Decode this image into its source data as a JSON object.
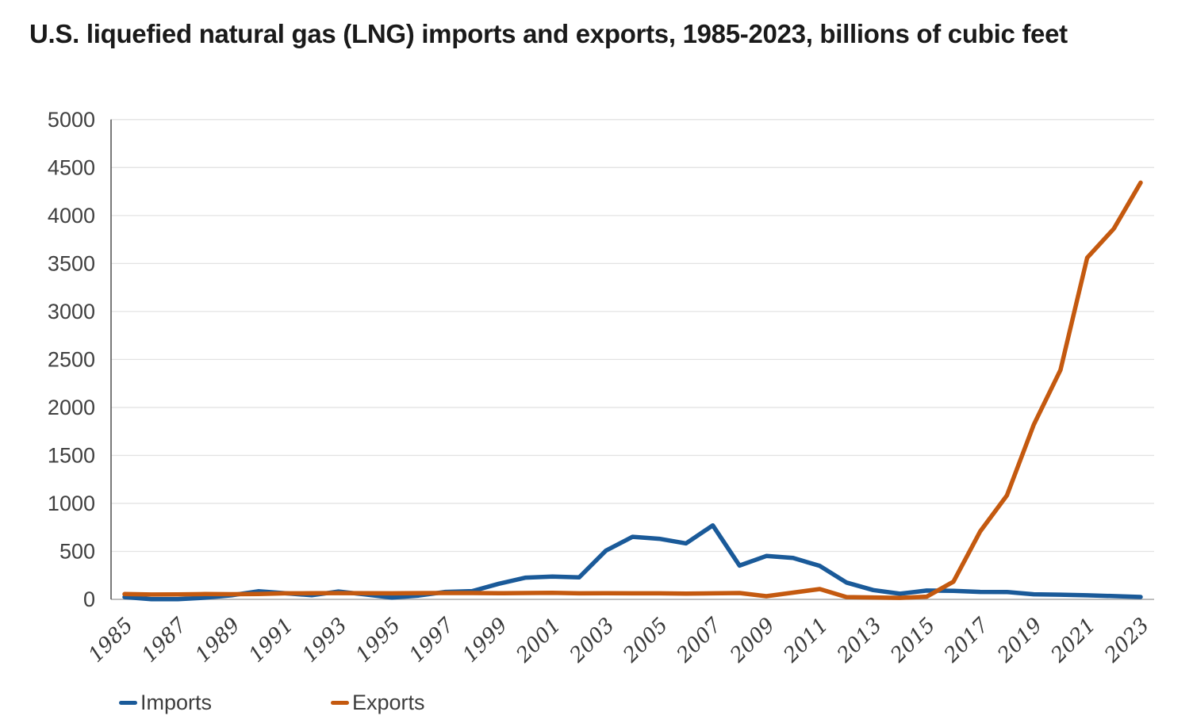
{
  "title": "U.S. liquefied natural gas (LNG) imports and exports, 1985-2023, billions of cubic feet",
  "legend": {
    "imports_label": "Imports",
    "exports_label": "Exports"
  },
  "colors": {
    "imports": "#1a5a99",
    "exports": "#c4590f",
    "grid": "#e3e3e3",
    "axis_left": "#595959",
    "axis_bottom": "#a8a8a8",
    "tick_text": "#404040",
    "title_text": "#1a1a1a"
  },
  "chart_data": {
    "type": "line",
    "title": "U.S. liquefied natural gas (LNG) imports and exports, 1985-2023, billions of cubic feet",
    "xlabel": "",
    "ylabel": "billions of cubic feet",
    "ylim": [
      0,
      5000
    ],
    "ytick_step": 500,
    "grid": "horizontal",
    "legend_position": "bottom-left",
    "xtick_every": 2,
    "x": [
      1985,
      1986,
      1987,
      1988,
      1989,
      1990,
      1991,
      1992,
      1993,
      1994,
      1995,
      1996,
      1997,
      1998,
      1999,
      2000,
      2001,
      2002,
      2003,
      2004,
      2005,
      2006,
      2007,
      2008,
      2009,
      2010,
      2011,
      2012,
      2013,
      2014,
      2015,
      2016,
      2017,
      2018,
      2019,
      2020,
      2021,
      2022,
      2023
    ],
    "series": [
      {
        "name": "Imports",
        "values": [
          24,
          2,
          2,
          17,
          42,
          84,
          64,
          43,
          82,
          51,
          18,
          40,
          78,
          86,
          163,
          226,
          238,
          229,
          507,
          652,
          631,
          583,
          771,
          352,
          452,
          431,
          349,
          175,
          97,
          59,
          92,
          88,
          78,
          77,
          53,
          49,
          42,
          34,
          25
        ]
      },
      {
        "name": "Exports",
        "values": [
          55,
          50,
          52,
          55,
          54,
          55,
          63,
          64,
          65,
          64,
          63,
          65,
          66,
          66,
          64,
          66,
          68,
          63,
          64,
          63,
          63,
          60,
          63,
          66,
          33,
          70,
          107,
          24,
          20,
          16,
          28,
          184,
          708,
          1083,
          1819,
          2390,
          3560,
          3864,
          4342
        ]
      }
    ]
  }
}
